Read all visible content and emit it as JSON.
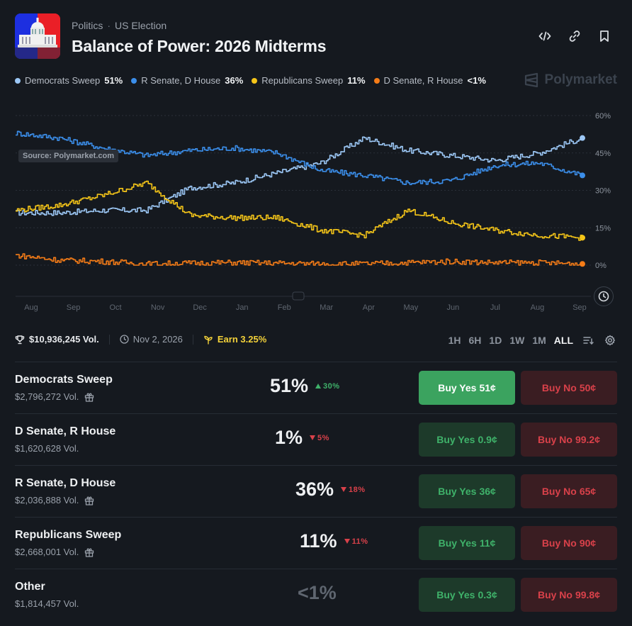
{
  "header": {
    "breadcrumb": [
      "Politics",
      "US Election"
    ],
    "breadcrumb_sep": "·",
    "title": "Balance of Power: 2026 Midterms"
  },
  "legend": [
    {
      "label": "Democrats Sweep",
      "value": "51%",
      "color": "#9cc7f5"
    },
    {
      "label": "R Senate, D House",
      "value": "36%",
      "color": "#3b8eea"
    },
    {
      "label": "Republicans Sweep",
      "value": "11%",
      "color": "#f5c518"
    },
    {
      "label": "D Senate, R House",
      "value": "<1%",
      "color": "#f57c17"
    }
  ],
  "brand": "Polymarket",
  "chart": {
    "source_label": "Source: Polymarket.com"
  },
  "chart_data": {
    "type": "line",
    "x": [
      "Aug",
      "Sep",
      "Oct",
      "Nov",
      "Dec",
      "Jan",
      "Feb",
      "Mar",
      "Apr",
      "May",
      "Jun",
      "Jul",
      "Aug",
      "Sep"
    ],
    "y_ticks": [
      "60%",
      "45%",
      "30%",
      "15%",
      "0%"
    ],
    "ylim": [
      0,
      60
    ],
    "grid": true,
    "series": [
      {
        "name": "Democrats Sweep",
        "color": "#9cc7f5",
        "values": [
          21,
          21,
          22,
          22,
          31,
          33,
          37,
          41,
          51,
          46,
          44,
          42,
          45,
          51
        ]
      },
      {
        "name": "R Senate, D House",
        "color": "#3b8eea",
        "values": [
          53,
          51,
          47,
          44,
          46,
          47,
          45,
          38,
          36,
          33,
          34,
          40,
          41,
          36
        ]
      },
      {
        "name": "Republicans Sweep",
        "color": "#f5c518",
        "values": [
          22,
          24,
          28,
          33,
          20,
          19,
          19,
          14,
          12,
          22,
          17,
          14,
          12,
          11
        ]
      },
      {
        "name": "D Senate, R House",
        "color": "#f57c17",
        "values": [
          4,
          2,
          1.5,
          0.5,
          0.8,
          1,
          0.8,
          0.5,
          0.5,
          1,
          1.5,
          1,
          1,
          0.5
        ]
      }
    ]
  },
  "stats": {
    "volume": "$10,936,245 Vol.",
    "date": "Nov 2, 2026",
    "earn": "Earn 3.25%"
  },
  "timeframes": [
    "1H",
    "6H",
    "1D",
    "1W",
    "1M",
    "ALL"
  ],
  "outcomes": [
    {
      "name": "Democrats Sweep",
      "volume": "$2,796,272 Vol.",
      "gift": true,
      "pct": "51%",
      "change": "30%",
      "dir": "up",
      "yes": "Buy Yes",
      "yes_price": "51¢",
      "no": "Buy No",
      "no_price": "50¢",
      "primary": true
    },
    {
      "name": "D Senate, R House",
      "volume": "$1,620,628 Vol.",
      "gift": false,
      "pct": "1%",
      "change": "5%",
      "dir": "down",
      "yes": "Buy Yes",
      "yes_price": "0.9¢",
      "no": "Buy No",
      "no_price": "99.2¢",
      "primary": false
    },
    {
      "name": "R Senate, D House",
      "volume": "$2,036,888 Vol.",
      "gift": true,
      "pct": "36%",
      "change": "18%",
      "dir": "down",
      "yes": "Buy Yes",
      "yes_price": "36¢",
      "no": "Buy No",
      "no_price": "65¢",
      "primary": false
    },
    {
      "name": "Republicans Sweep",
      "volume": "$2,668,001 Vol.",
      "gift": true,
      "pct": "11%",
      "change": "11%",
      "dir": "down",
      "yes": "Buy Yes",
      "yes_price": "11¢",
      "no": "Buy No",
      "no_price": "90¢",
      "primary": false
    },
    {
      "name": "Other",
      "volume": "$1,814,457 Vol.",
      "gift": false,
      "pct": "<1%",
      "change": "",
      "dir": "",
      "yes": "Buy Yes",
      "yes_price": "0.3¢",
      "no": "Buy No",
      "no_price": "99.8¢",
      "primary": false
    }
  ]
}
